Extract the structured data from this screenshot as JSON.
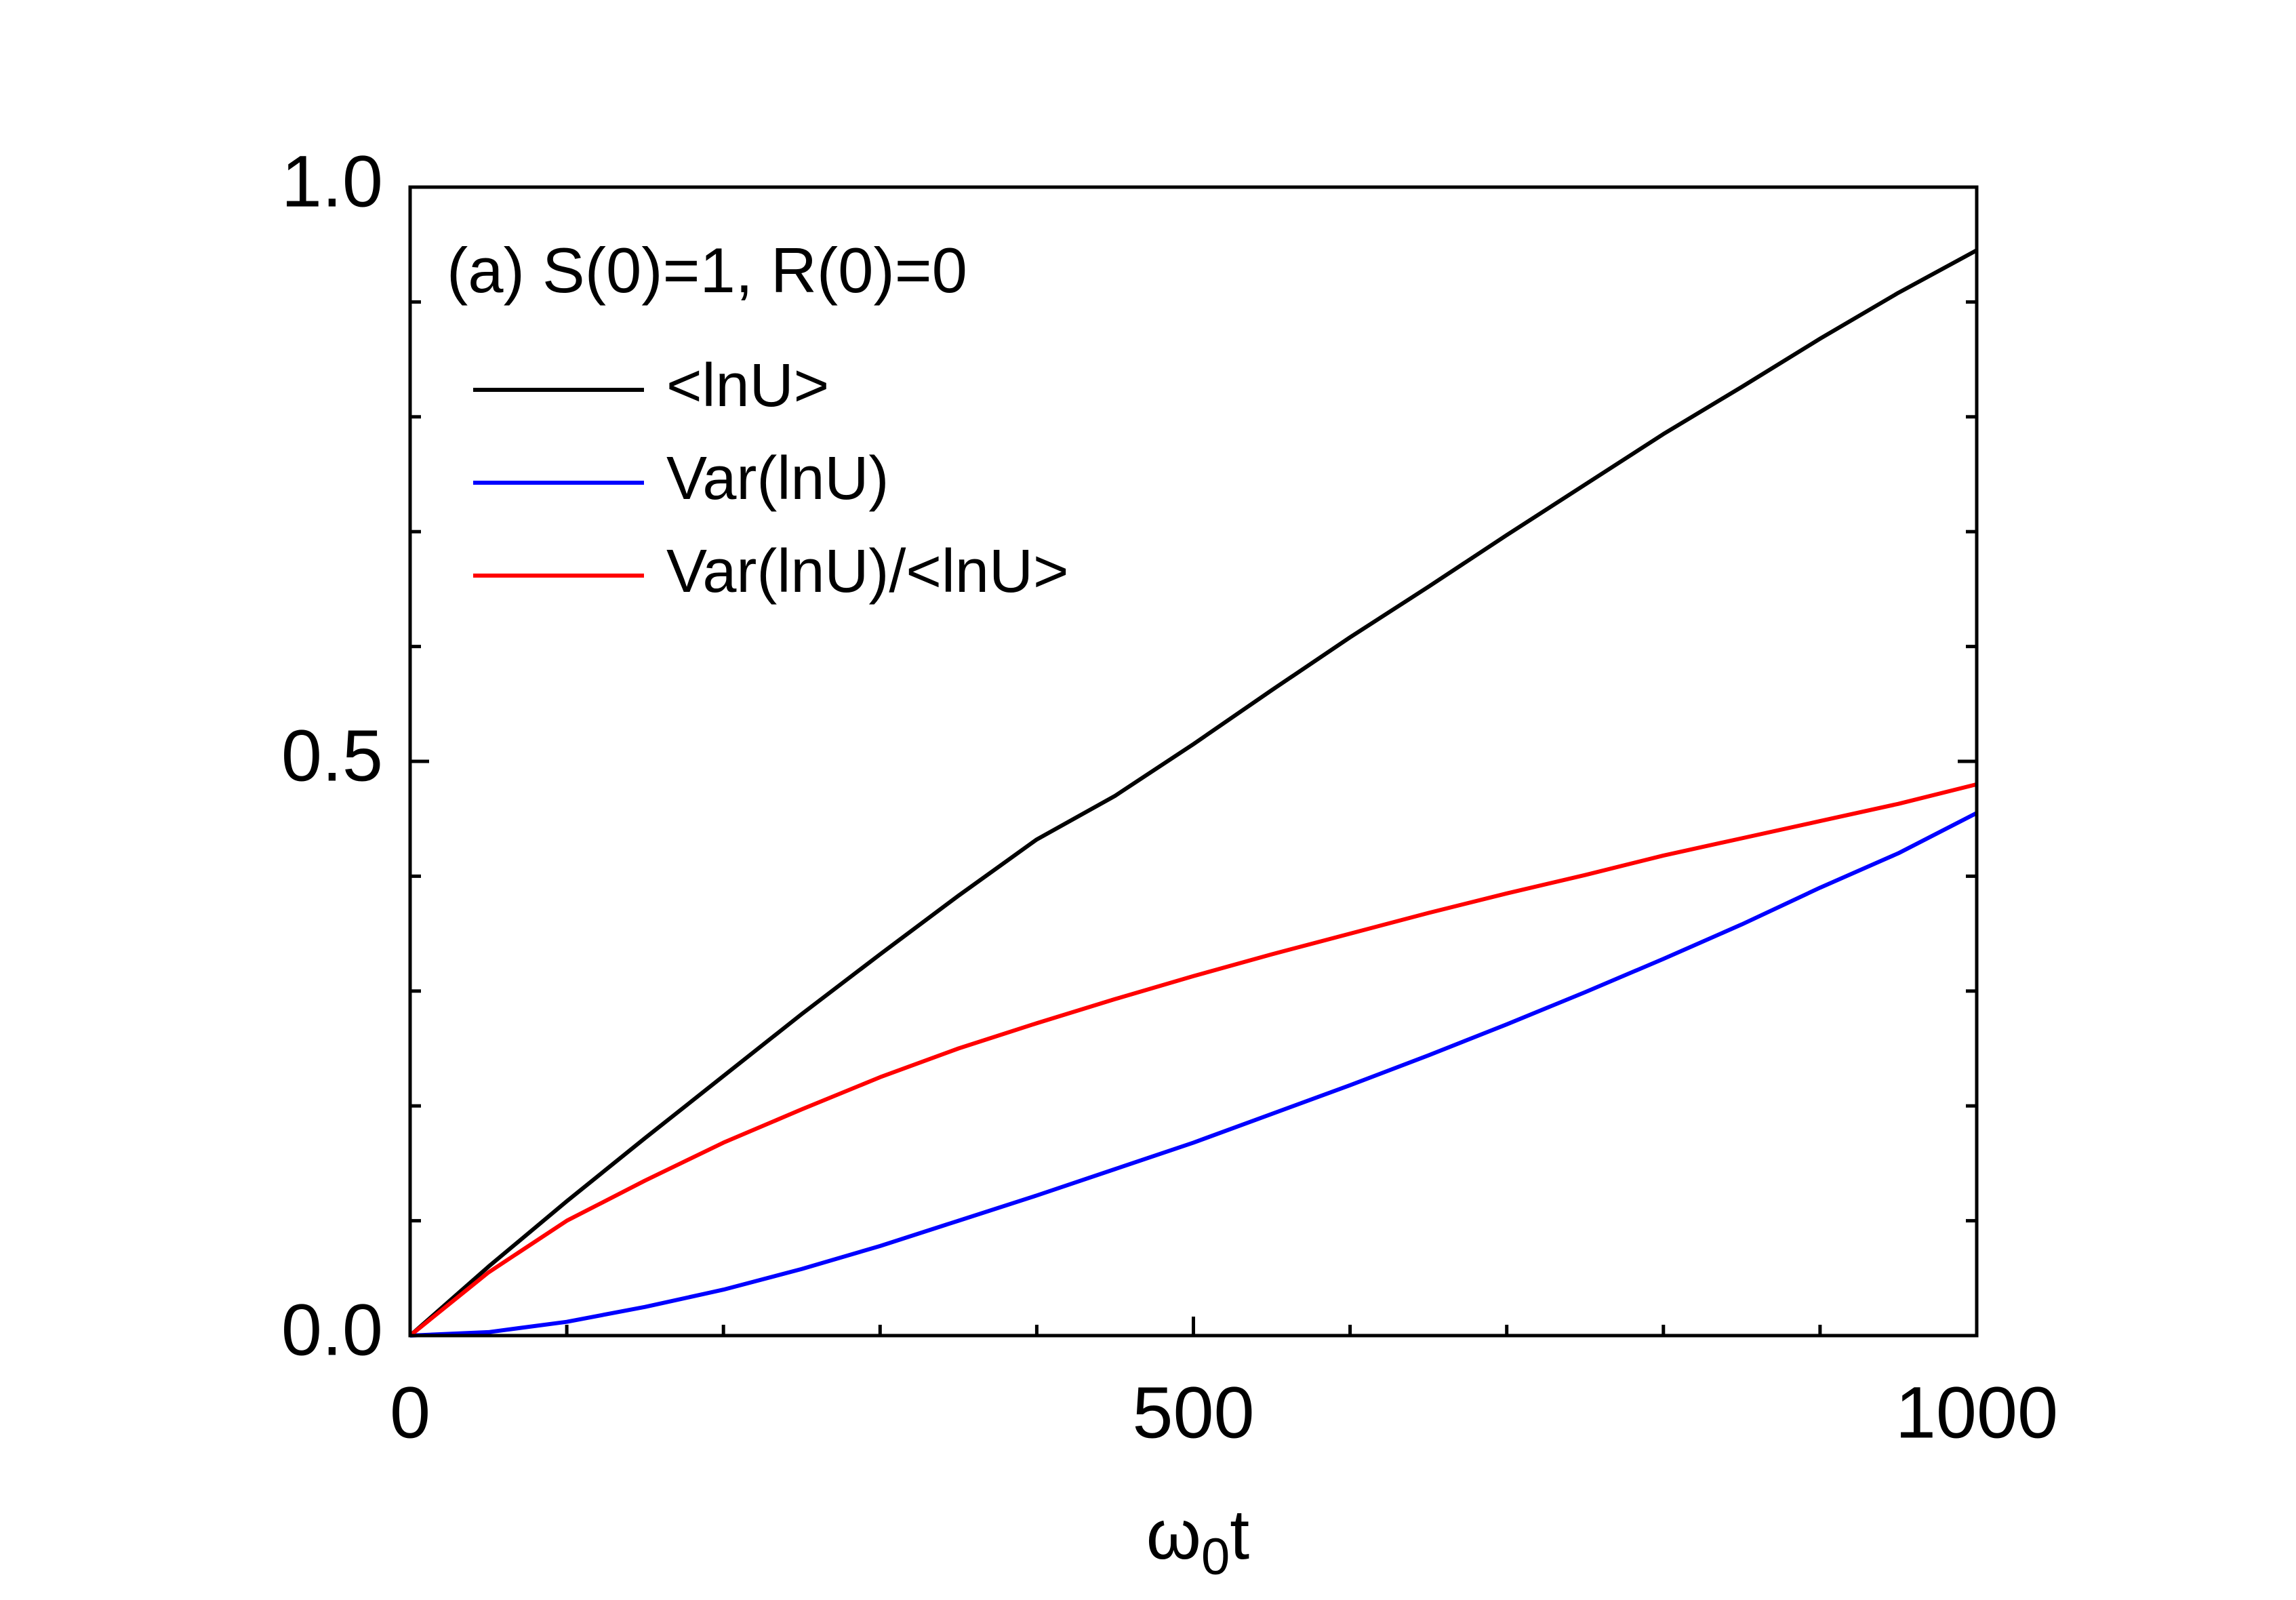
{
  "chart_data": {
    "type": "line",
    "annotation": "(a) S(0)=1, R(0)=0",
    "x_label": [
      "ω",
      "0",
      "t"
    ],
    "x": [
      0,
      50,
      100,
      150,
      200,
      250,
      300,
      350,
      400,
      450,
      500,
      550,
      600,
      650,
      700,
      750,
      800,
      850,
      900,
      950,
      1000
    ],
    "series": [
      {
        "name": "<lnU>",
        "color": "#000000",
        "values": [
          0,
          0.06,
          0.117,
          0.172,
          0.226,
          0.28,
          0.332,
          0.383,
          0.432,
          0.47,
          0.515,
          0.562,
          0.608,
          0.652,
          0.697,
          0.741,
          0.785,
          0.826,
          0.868,
          0.908,
          0.945
        ]
      },
      {
        "name": "Var(lnU)",
        "color": "#0000ff",
        "values": [
          0,
          0.003,
          0.012,
          0.025,
          0.04,
          0.058,
          0.078,
          0.1,
          0.122,
          0.145,
          0.168,
          0.193,
          0.218,
          0.244,
          0.271,
          0.299,
          0.328,
          0.358,
          0.39,
          0.42,
          0.455
        ]
      },
      {
        "name": "Var(lnU)/<lnU>",
        "color": "#ff0000",
        "values": [
          0,
          0.055,
          0.1,
          0.135,
          0.168,
          0.197,
          0.225,
          0.25,
          0.272,
          0.293,
          0.313,
          0.332,
          0.35,
          0.368,
          0.385,
          0.401,
          0.418,
          0.433,
          0.448,
          0.463,
          0.48
        ]
      }
    ],
    "xlim": [
      0,
      1000
    ],
    "xticks": [
      0,
      500,
      1000
    ],
    "ylim": [
      0,
      1
    ],
    "yticks": [
      {
        "value": 0,
        "label": "0.0"
      },
      0.5,
      {
        "value": 1,
        "label": "1.0"
      }
    ],
    "grid": false,
    "legend": "upper left"
  }
}
